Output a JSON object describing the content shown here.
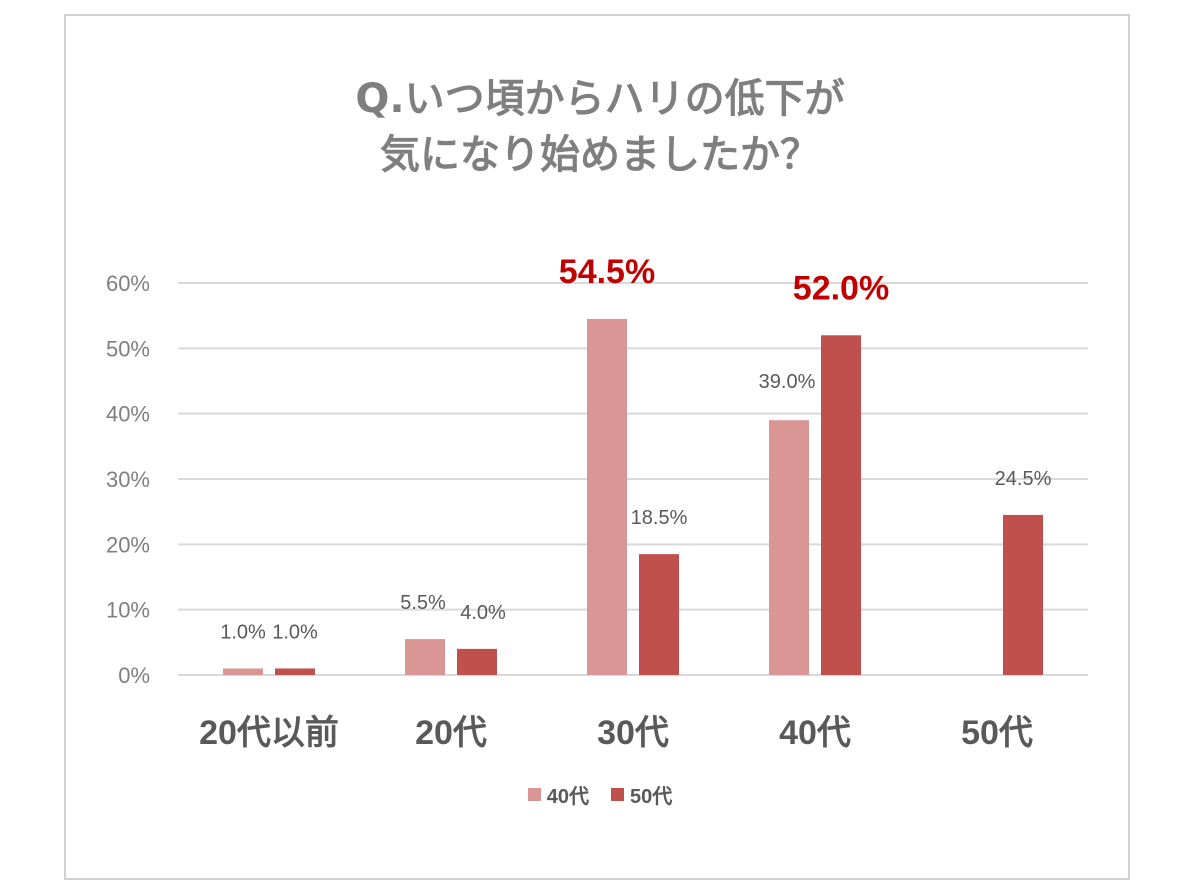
{
  "chart_data": {
    "type": "bar",
    "title_lines": [
      "Q.いつ頃からハリの低下が",
      "気になり始めましたか？"
    ],
    "categories": [
      "20代以前",
      "20代",
      "30代",
      "40代",
      "50代"
    ],
    "series": [
      {
        "name": "40代",
        "color": "#d99694",
        "values": [
          1.0,
          5.5,
          54.5,
          39.0,
          null
        ],
        "labels": [
          "1.0%",
          "5.5%",
          "54.5%",
          "39.0%",
          ""
        ]
      },
      {
        "name": "50代",
        "color": "#c0504d",
        "values": [
          1.0,
          4.0,
          18.5,
          52.0,
          24.5
        ],
        "labels": [
          "1.0%",
          "4.0%",
          "18.5%",
          "52.0%",
          "24.5%"
        ]
      }
    ],
    "highlighted_labels": [
      {
        "series": 0,
        "category": 2
      },
      {
        "series": 1,
        "category": 3
      }
    ],
    "highlight_color": "#c00000",
    "y_ticks": [
      0,
      10,
      20,
      30,
      40,
      50,
      60
    ],
    "y_tick_labels": [
      "0%",
      "10%",
      "20%",
      "30%",
      "40%",
      "50%",
      "60%"
    ],
    "ylim": [
      0,
      60
    ],
    "grid": true,
    "legend_position": "bottom",
    "xlabel": "",
    "ylabel": ""
  }
}
